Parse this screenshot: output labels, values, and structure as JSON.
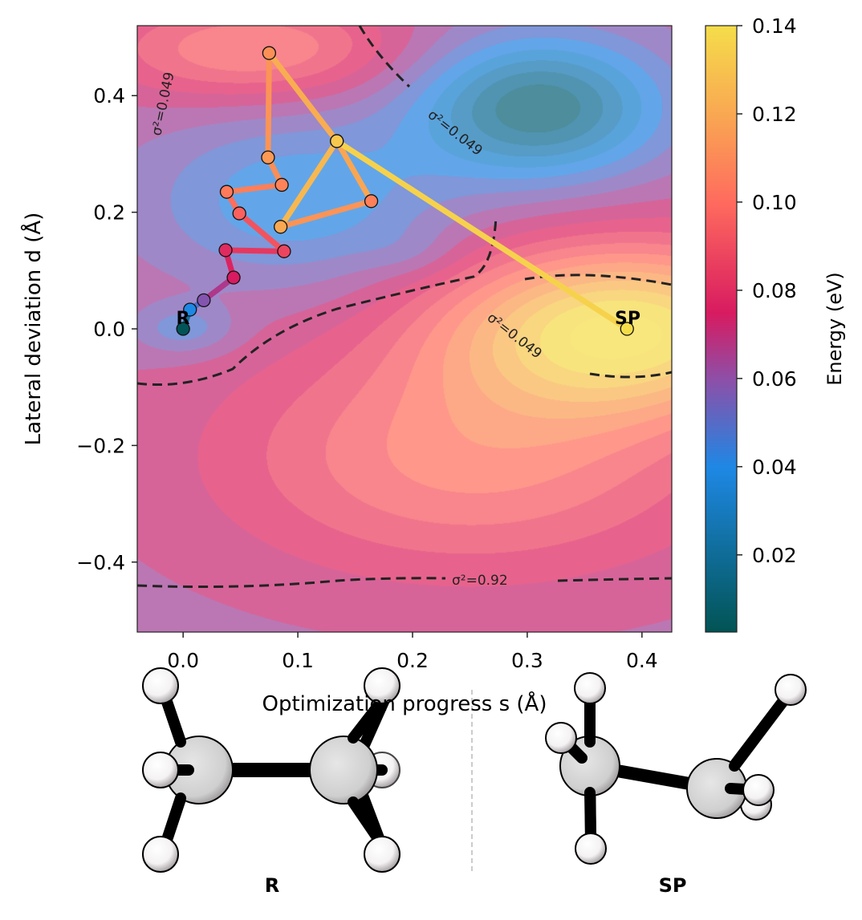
{
  "chart_data": {
    "type": "contour",
    "xlabel": "Optimization progress s (Å)",
    "ylabel": "Lateral deviation d (Å)",
    "xlim": [
      -0.04,
      0.426
    ],
    "ylim": [
      -0.52,
      0.52
    ],
    "xticks": [
      "0.0",
      "0.1",
      "0.2",
      "0.3",
      "0.4"
    ],
    "yticks": [
      "0.4",
      "0.2",
      "0.0",
      "−0.2",
      "−0.4"
    ],
    "colorbar": {
      "label": "Energy (eV)",
      "range": [
        0.0025,
        0.14
      ],
      "ticks": [
        "0.02",
        "0.04",
        "0.06",
        "0.08",
        "0.10",
        "0.12",
        "0.14"
      ],
      "colormap": [
        "#00504a",
        "#1e88e5",
        "#8e4fa8",
        "#d81b60",
        "#ff6b5e",
        "#f9a852",
        "#f5dd4a"
      ]
    },
    "path": {
      "s": [
        0.0,
        0.006,
        0.018,
        0.044,
        0.037,
        0.088,
        0.049,
        0.038,
        0.086,
        0.074,
        0.075,
        0.134,
        0.164,
        0.085,
        0.134,
        0.387
      ],
      "d": [
        0.0,
        0.033,
        0.049,
        0.088,
        0.135,
        0.133,
        0.198,
        0.235,
        0.247,
        0.294,
        0.473,
        0.322,
        0.219,
        0.175,
        0.322,
        0.0
      ],
      "energy": [
        0.003,
        0.04,
        0.058,
        0.075,
        0.08,
        0.088,
        0.097,
        0.105,
        0.108,
        0.115,
        0.112,
        0.132,
        0.107,
        0.12,
        0.132,
        0.14
      ]
    },
    "annotations": {
      "start": "R",
      "end": "SP"
    },
    "contour_labels": [
      "σ²=0.049",
      "σ²=0.049",
      "σ²=0.049",
      "σ²=0.92"
    ]
  },
  "molecules": {
    "left_label": "R",
    "right_label": "SP"
  }
}
